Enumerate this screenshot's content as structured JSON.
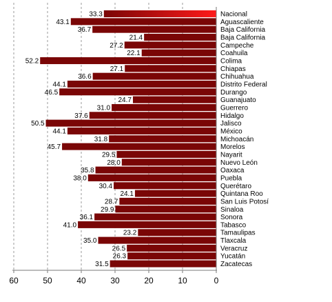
{
  "chart_data": {
    "type": "bar",
    "orientation": "horizontal",
    "direction": "right-to-left",
    "categories": [
      "Nacional",
      "Aguascaliente",
      "Baja California",
      "Baja California",
      "Campeche",
      "Coahuila",
      "Colima",
      "Chiapas",
      "Chihuahua",
      "Distrito Federal",
      "Durango",
      "Guanajuato",
      "Guerrero",
      "Hidalgo",
      "Jalisco",
      "México",
      "Michoacán",
      "Morelos",
      "Nayarit",
      "Nuevo León",
      "Oaxaca",
      "Puebla",
      "Querétaro",
      "Quintana Roo",
      "San Luis Potosí",
      "Sinaloa",
      "Sonora",
      "Tabasco",
      "Tamaulipas",
      "Tlaxcala",
      "Veracruz",
      "Yucatán",
      "Zacatecas"
    ],
    "values": [
      33.3,
      43.1,
      36.7,
      21.4,
      27.2,
      22.1,
      52.2,
      27.1,
      36.6,
      44.1,
      46.5,
      24.7,
      31.0,
      37.6,
      50.5,
      44.1,
      31.8,
      45.7,
      29.5,
      28.0,
      35.8,
      38.0,
      30.4,
      24.1,
      28.7,
      29.9,
      36.1,
      41.0,
      23.2,
      35.0,
      26.5,
      26.3,
      31.5
    ],
    "value_labels": [
      "33.3",
      "43.1",
      "36.7",
      "21.4",
      "27.2",
      "22.1",
      "52.2",
      "27.1",
      "36.6",
      "44.1",
      "46.5",
      "24.7",
      "31.0",
      "37.6",
      "50.5",
      "44.1",
      "31.8",
      "45.7",
      "29.5",
      "28.0",
      "35.8",
      "38.0",
      "30.4",
      "24.1",
      "28.7",
      "29.9",
      "36.1",
      "41.0",
      "23.2",
      "35.0",
      "26.5",
      "26.3",
      "31.5"
    ],
    "xlim": [
      0,
      60
    ],
    "xticks": [
      0,
      10,
      20,
      30,
      40,
      50,
      60
    ],
    "xtick_labels": [
      "0",
      "10",
      "20",
      "30",
      "40",
      "50",
      "60"
    ],
    "grid": true,
    "title": "",
    "xlabel": "",
    "ylabel": "",
    "colors": {
      "bar": "#7a0606",
      "highlight_start": "#7a0606",
      "highlight_end": "#ff1a1a",
      "grid": "#999999",
      "axis": "#777777"
    },
    "highlighted_category": "Nacional"
  }
}
